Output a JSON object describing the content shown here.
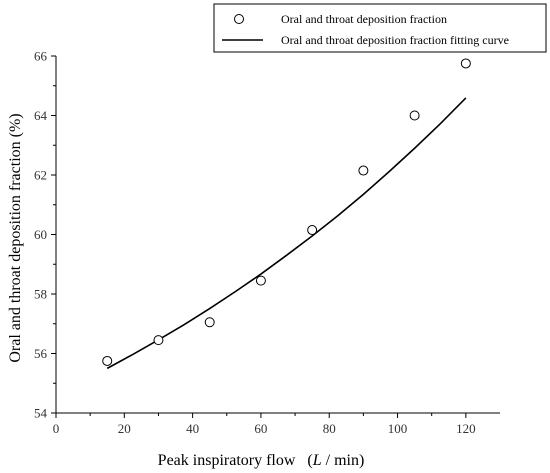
{
  "chart_data": {
    "type": "scatter",
    "xlabel_main": "Peak inspiratory flow",
    "xlabel_unit_italic": "L",
    "xlabel_unit_rest": " / min)",
    "xlabel_paren_open": "(",
    "ylabel": "Oral and throat deposition fraction (%)",
    "xlim": [
      0,
      130
    ],
    "ylim": [
      54,
      66
    ],
    "xticks": [
      0,
      20,
      40,
      60,
      80,
      100,
      120
    ],
    "yticks": [
      54,
      56,
      58,
      60,
      62,
      64,
      66
    ],
    "legend_position": "top-right",
    "series": [
      {
        "name": "Oral and throat deposition fraction",
        "kind": "scatter",
        "marker": "open-circle",
        "x": [
          15,
          30,
          45,
          60,
          75,
          90,
          105,
          120
        ],
        "y": [
          55.75,
          56.45,
          57.05,
          58.45,
          60.15,
          62.15,
          64.0,
          65.75
        ]
      },
      {
        "name": "Oral and throat deposition fraction fitting curve",
        "kind": "line",
        "x": [
          15,
          22.5,
          30,
          37.5,
          45,
          52.5,
          60,
          67.5,
          75,
          82.5,
          90,
          97.5,
          105,
          112.5,
          120
        ],
        "y": [
          55.5,
          55.97,
          56.46,
          56.97,
          57.51,
          58.08,
          58.67,
          59.3,
          59.95,
          60.63,
          61.35,
          62.11,
          62.9,
          63.72,
          64.59
        ]
      }
    ]
  }
}
